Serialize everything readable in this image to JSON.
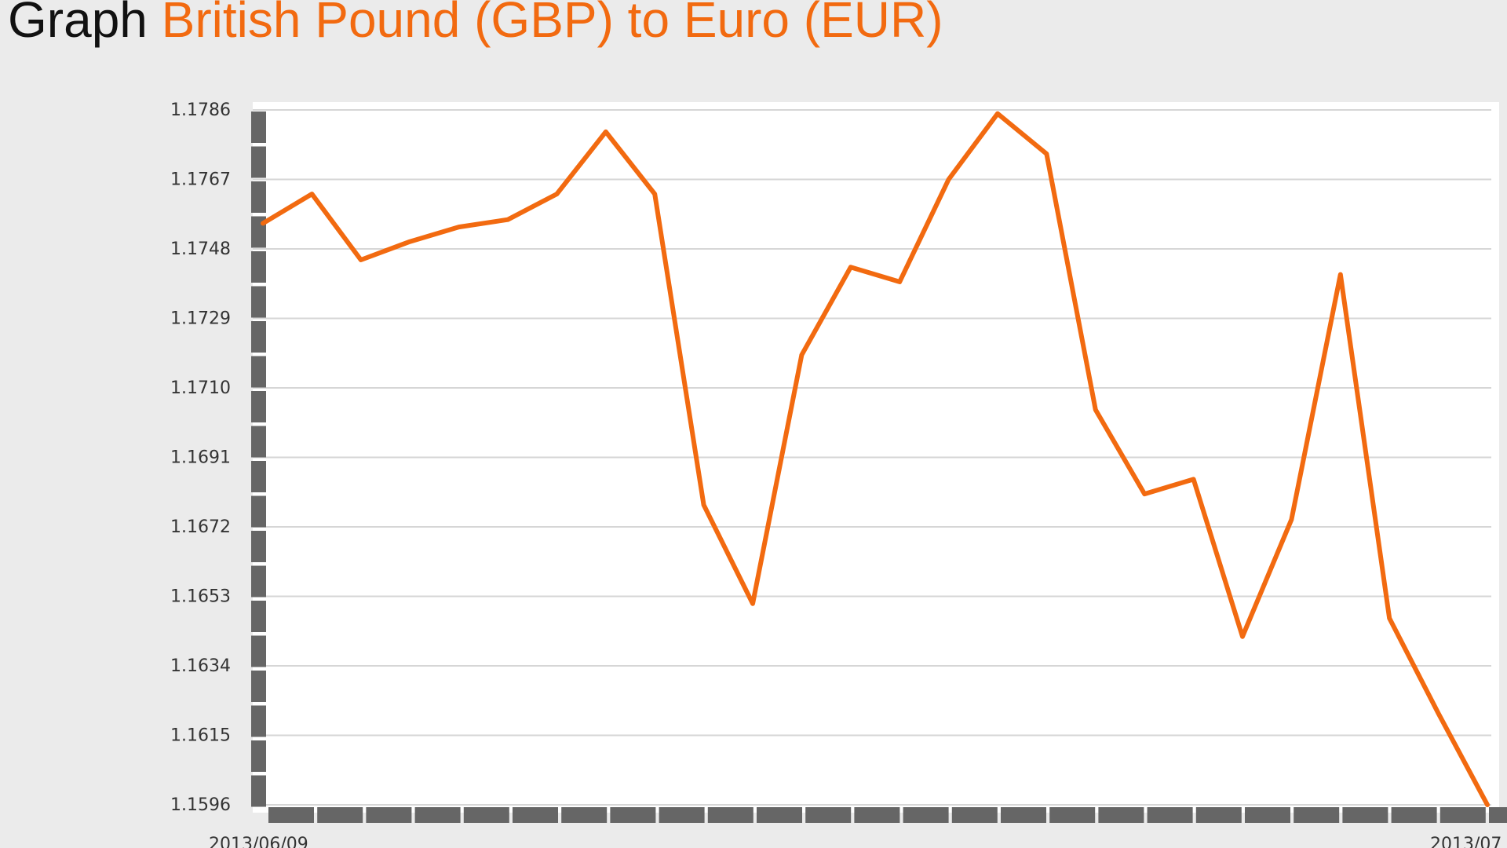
{
  "title": {
    "prefix": "Graph",
    "main": "British Pound (GBP) to Euro (EUR)"
  },
  "colors": {
    "background": "#ebebeb",
    "plot_background": "#ffffff",
    "line": "#f26a10",
    "title_prefix": "#111111",
    "title_main": "#f26a10",
    "axis_bar": "#666666",
    "grid": "#d6d6d6",
    "tick_text": "#333333"
  },
  "chart_data": {
    "type": "line",
    "title": "British Pound (GBP) to Euro (EUR)",
    "xlabel": "",
    "ylabel": "",
    "ylim": [
      1.1596,
      1.1786
    ],
    "y_ticks": [
      "1.1786",
      "1.1767",
      "1.1748",
      "1.1729",
      "1.1710",
      "1.1691",
      "1.1672",
      "1.1653",
      "1.1634",
      "1.1615",
      "1.1596"
    ],
    "x_tick_labels": [
      "2013/06/09",
      "2013/07"
    ],
    "grid": true,
    "legend": "none",
    "series": [
      {
        "values": [
          1.1755,
          1.1763,
          1.1745,
          1.175,
          1.1754,
          1.1756,
          1.1763,
          1.178,
          1.1763,
          1.1678,
          1.1651,
          1.1719,
          1.1743,
          1.1739,
          1.1767,
          1.1785,
          1.1774,
          1.1704,
          1.1681,
          1.1685,
          1.1642,
          1.1674,
          1.1741,
          1.1647,
          1.1621,
          1.1596
        ]
      }
    ]
  }
}
